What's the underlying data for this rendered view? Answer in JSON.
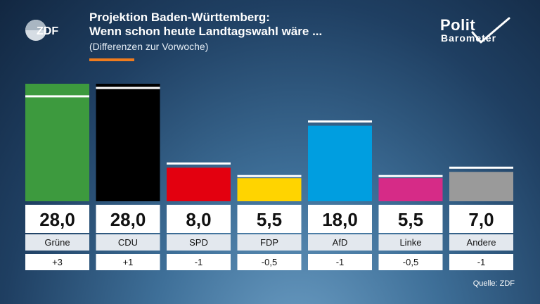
{
  "header": {
    "logo_text": "ZDF",
    "title_line1": "Projektion Baden-Württemberg:",
    "title_line2": "Wenn schon heute Landtagswahl wäre ...",
    "subtitle": "(Differenzen zur Vorwoche)",
    "brand_top": "Polit",
    "brand_bottom": "Barometer"
  },
  "colors": {
    "accent": "#f07c1e",
    "value_box": "#ffffff",
    "label_box": "#e3e8ee",
    "diff_box": "#ffffff"
  },
  "chart_data": {
    "type": "bar",
    "title": "Projektion Baden-Württemberg: Wenn schon heute Landtagswahl wäre ...",
    "subtitle": "(Differenzen zur Vorwoche)",
    "categories": [
      "Grüne",
      "CDU",
      "SPD",
      "FDP",
      "AfD",
      "Linke",
      "Andere"
    ],
    "values": [
      28.0,
      28.0,
      8.0,
      5.5,
      18.0,
      5.5,
      7.0
    ],
    "value_labels": [
      "28,0",
      "28,0",
      "8,0",
      "5,5",
      "18,0",
      "5,5",
      "7,0"
    ],
    "diff_labels": [
      "+3",
      "+1",
      "-1",
      "-0,5",
      "-1",
      "-0,5",
      "-1"
    ],
    "previous_values": [
      25.0,
      27.0,
      9.0,
      6.0,
      19.0,
      6.0,
      8.0
    ],
    "colors": [
      "#3d9a3e",
      "#000000",
      "#e3000f",
      "#ffd400",
      "#009ee0",
      "#d62b87",
      "#9a9a9a"
    ],
    "ylim": [
      0,
      30
    ],
    "grid": false,
    "legend": "none"
  },
  "footer": {
    "source": "Quelle: ZDF"
  }
}
